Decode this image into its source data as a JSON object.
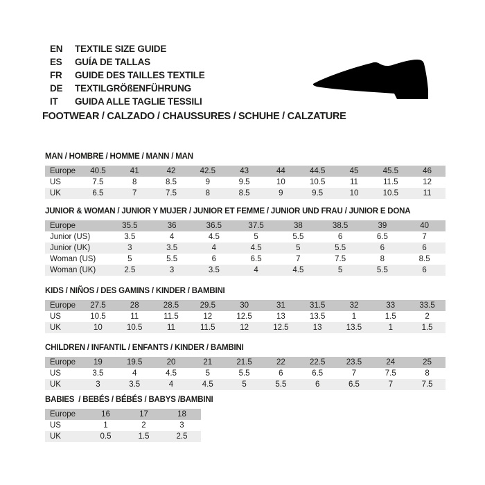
{
  "header": {
    "languages": [
      {
        "code": "EN",
        "label": "TEXTILE SIZE GUIDE"
      },
      {
        "code": "ES",
        "label": "GUÍA DE TALLAS"
      },
      {
        "code": "FR",
        "label": "GUIDE DES TAILLES TEXTILE"
      },
      {
        "code": "DE",
        "label": "TEXTILGRÖßENFÜHRUNG"
      },
      {
        "code": "IT",
        "label": "GUIDA ALLE TAGLIE TESSILI"
      }
    ],
    "category_line": "FOOTWEAR / CALZADO / CHAUSSURES / SCHUHE / CALZATURE",
    "shoe_icon": "dress-shoe-silhouette"
  },
  "colors": {
    "background": "#ffffff",
    "text": "#1d1d1b",
    "table_header_row": "#c6c6c6",
    "table_zebra_row": "#ededed",
    "shoe": "#000000"
  },
  "tables": [
    {
      "id": "man",
      "title": "MAN / HOMBRE / HOMME / MANN / MAN",
      "rows": [
        {
          "label": "Europe",
          "values": [
            "40.5",
            "41",
            "42",
            "42.5",
            "43",
            "44",
            "44.5",
            "45",
            "45.5",
            "46"
          ]
        },
        {
          "label": "US",
          "values": [
            "7.5",
            "8",
            "8.5",
            "9",
            "9.5",
            "10",
            "10.5",
            "11",
            "11.5",
            "12"
          ]
        },
        {
          "label": "UK",
          "values": [
            "6.5",
            "7",
            "7.5",
            "8",
            "8.5",
            "9",
            "9.5",
            "10",
            "10.5",
            "11"
          ]
        }
      ]
    },
    {
      "id": "junior-woman",
      "title": "JUNIOR & WOMAN / JUNIOR Y MUJER / JUNIOR ET FEMME / JUNIOR UND FRAU / JUNIOR E DONA",
      "rows": [
        {
          "label": "Europe",
          "values": [
            "35.5",
            "36",
            "36.5",
            "37.5",
            "38",
            "38.5",
            "39",
            "40"
          ]
        },
        {
          "label": "Junior (US)",
          "values": [
            "3.5",
            "4",
            "4.5",
            "5",
            "5.5",
            "6",
            "6.5",
            "7"
          ]
        },
        {
          "label": "Junior (UK)",
          "values": [
            "3",
            "3.5",
            "4",
            "4.5",
            "5",
            "5.5",
            "6",
            "6"
          ]
        },
        {
          "label": "Woman (US)",
          "values": [
            "5",
            "5.5",
            "6",
            "6.5",
            "7",
            "7.5",
            "8",
            "8.5"
          ]
        },
        {
          "label": "Woman (UK)",
          "values": [
            "2.5",
            "3",
            "3.5",
            "4",
            "4.5",
            "5",
            "5.5",
            "6"
          ]
        }
      ]
    },
    {
      "id": "kids",
      "title": "KIDS / NIÑOS / DES GAMINS / KINDER / BAMBINI",
      "rows": [
        {
          "label": "Europe",
          "values": [
            "27.5",
            "28",
            "28.5",
            "29.5",
            "30",
            "31",
            "31.5",
            "32",
            "33",
            "33.5"
          ]
        },
        {
          "label": "US",
          "values": [
            "10.5",
            "11",
            "11.5",
            "12",
            "12.5",
            "13",
            "13.5",
            "1",
            "1.5",
            "2"
          ]
        },
        {
          "label": "UK",
          "values": [
            "10",
            "10.5",
            "11",
            "11.5",
            "12",
            "12.5",
            "13",
            "13.5",
            "1",
            "1.5"
          ]
        }
      ]
    },
    {
      "id": "children",
      "title": "CHILDREN / INFANTIL / ENFANTS / KINDER / BAMBINI",
      "rows": [
        {
          "label": "Europe",
          "values": [
            "19",
            "19.5",
            "20",
            "21",
            "21.5",
            "22",
            "22.5",
            "23.5",
            "24",
            "25"
          ]
        },
        {
          "label": "US",
          "values": [
            "3.5",
            "4",
            "4.5",
            "5",
            "5.5",
            "6",
            "6.5",
            "7",
            "7.5",
            "8"
          ]
        },
        {
          "label": "UK",
          "values": [
            "3",
            "3.5",
            "4",
            "4.5",
            "5",
            "5.5",
            "6",
            "6.5",
            "7",
            "7.5"
          ]
        }
      ]
    },
    {
      "id": "babies",
      "title": "BABIES  / BEBÉS / BÉBÉS / BABYS /BAMBINI",
      "rows": [
        {
          "label": "Europe",
          "values": [
            "16",
            "17",
            "18"
          ]
        },
        {
          "label": "US",
          "values": [
            "1",
            "2",
            "3"
          ]
        },
        {
          "label": "UK",
          "values": [
            "0.5",
            "1.5",
            "2.5"
          ]
        }
      ]
    }
  ]
}
